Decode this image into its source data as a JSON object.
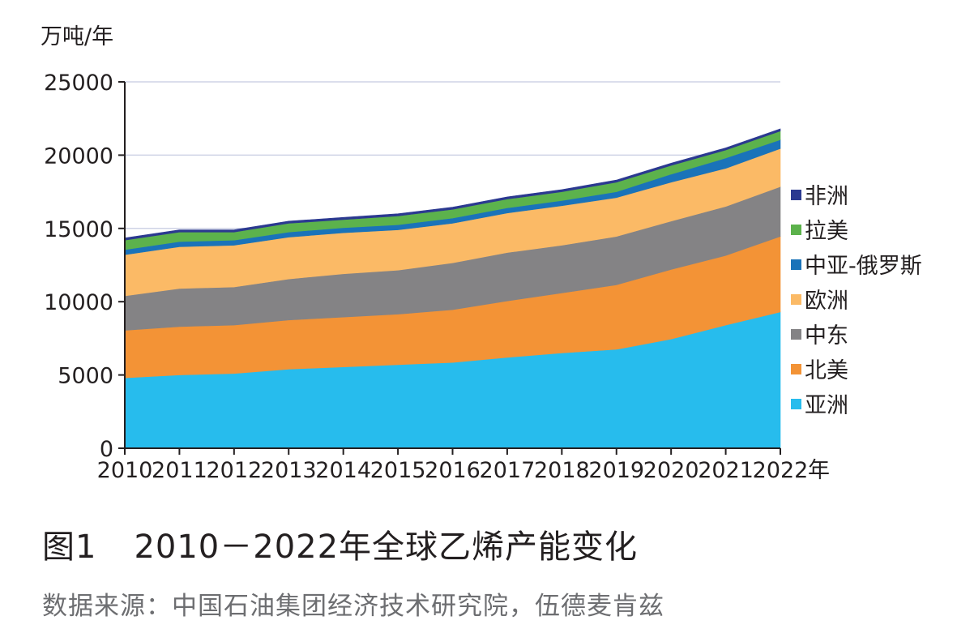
{
  "caption": {
    "figure_label": "图1",
    "title": "2010－2022年全球乙烯产能变化"
  },
  "source": "数据来源：中国石油集团经济技术研究院，伍德麦肯兹",
  "chart_data": {
    "type": "area",
    "stacked": true,
    "ylabel": "万吨/年",
    "xlabel_suffix": "年",
    "ylim": [
      0,
      25000
    ],
    "yticks": [
      0,
      5000,
      10000,
      15000,
      20000,
      25000
    ],
    "grid": true,
    "legend_position": "right",
    "categories": [
      "2010",
      "2011",
      "2012",
      "2013",
      "2014",
      "2015",
      "2016",
      "2017",
      "2018",
      "2019",
      "2020",
      "2021",
      "2022"
    ],
    "series": [
      {
        "name": "亚洲",
        "color": "#27bced",
        "values": [
          4800,
          5000,
          5100,
          5400,
          5550,
          5700,
          5850,
          6200,
          6500,
          6750,
          7450,
          8400,
          9300
        ]
      },
      {
        "name": "北美",
        "color": "#f39336",
        "values": [
          3250,
          3300,
          3300,
          3350,
          3400,
          3450,
          3600,
          3850,
          4100,
          4400,
          4750,
          4750,
          5150
        ]
      },
      {
        "name": "中东",
        "color": "#848385",
        "values": [
          2350,
          2600,
          2600,
          2800,
          2950,
          3000,
          3200,
          3300,
          3250,
          3300,
          3300,
          3350,
          3400
        ]
      },
      {
        "name": "欧洲",
        "color": "#fbba66",
        "values": [
          2800,
          2850,
          2850,
          2850,
          2800,
          2750,
          2700,
          2700,
          2700,
          2650,
          2650,
          2600,
          2600
        ]
      },
      {
        "name": "中亚-俄罗斯",
        "color": "#1a73b9",
        "values": [
          350,
          350,
          350,
          350,
          350,
          350,
          350,
          350,
          350,
          400,
          550,
          700,
          600
        ]
      },
      {
        "name": "拉美",
        "color": "#5cb24c",
        "values": [
          650,
          650,
          550,
          600,
          550,
          600,
          600,
          600,
          600,
          650,
          600,
          550,
          600
        ]
      },
      {
        "name": "非洲",
        "color": "#2b3990",
        "values": [
          150,
          150,
          150,
          150,
          150,
          150,
          150,
          150,
          150,
          150,
          150,
          150,
          150
        ]
      }
    ]
  }
}
